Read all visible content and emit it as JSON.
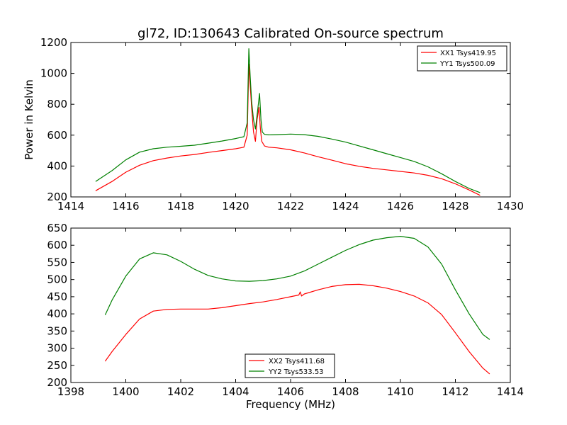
{
  "chart_data": [
    {
      "type": "line",
      "title": "gl72, ID:130643 Calibrated On-source spectrum",
      "xlabel": "",
      "ylabel": "Power in Kelvin",
      "xlim": [
        1414,
        1430
      ],
      "ylim": [
        200,
        1200
      ],
      "xticks": [
        1414,
        1416,
        1418,
        1420,
        1422,
        1424,
        1426,
        1428,
        1430
      ],
      "yticks": [
        200,
        400,
        600,
        800,
        1000,
        1200
      ],
      "legend_position": "top-right",
      "series": [
        {
          "name": "XX1 Tsys419.95",
          "color": "#ff0000",
          "x": [
            1414.9,
            1415.5,
            1416.0,
            1416.5,
            1417.0,
            1417.5,
            1418.0,
            1418.5,
            1419.0,
            1419.5,
            1420.0,
            1420.3,
            1420.42,
            1420.48,
            1420.52,
            1420.58,
            1420.65,
            1420.72,
            1420.78,
            1420.85,
            1420.9,
            1420.95,
            1421.05,
            1421.2,
            1421.5,
            1422.0,
            1422.5,
            1423.0,
            1423.5,
            1424.0,
            1424.5,
            1425.0,
            1425.5,
            1426.0,
            1426.5,
            1427.0,
            1427.5,
            1428.0,
            1428.5,
            1428.9
          ],
          "values": [
            240,
            300,
            360,
            405,
            435,
            452,
            465,
            475,
            488,
            500,
            512,
            522,
            600,
            1060,
            950,
            780,
            620,
            560,
            700,
            780,
            640,
            560,
            530,
            522,
            518,
            505,
            485,
            460,
            438,
            415,
            398,
            385,
            375,
            365,
            355,
            340,
            318,
            285,
            245,
            210
          ]
        },
        {
          "name": "YY1 Tsys500.09",
          "color": "#008000",
          "x": [
            1414.9,
            1415.5,
            1416.0,
            1416.5,
            1417.0,
            1417.5,
            1418.0,
            1418.5,
            1419.0,
            1419.5,
            1420.0,
            1420.3,
            1420.42,
            1420.48,
            1420.53,
            1420.58,
            1420.65,
            1420.72,
            1420.8,
            1420.87,
            1420.92,
            1420.97,
            1421.05,
            1421.2,
            1421.5,
            1422.0,
            1422.5,
            1423.0,
            1423.5,
            1424.0,
            1424.5,
            1425.0,
            1425.5,
            1426.0,
            1426.5,
            1427.0,
            1427.5,
            1428.0,
            1428.5,
            1428.9
          ],
          "values": [
            300,
            370,
            440,
            490,
            512,
            522,
            528,
            535,
            548,
            562,
            578,
            590,
            680,
            1160,
            980,
            820,
            700,
            640,
            760,
            870,
            700,
            620,
            605,
            602,
            603,
            607,
            603,
            592,
            575,
            555,
            530,
            505,
            480,
            455,
            430,
            395,
            350,
            300,
            255,
            228
          ]
        }
      ]
    },
    {
      "type": "line",
      "title": "",
      "xlabel": "Frequency (MHz)",
      "ylabel": "",
      "xlim": [
        1398,
        1414
      ],
      "ylim": [
        200,
        650
      ],
      "xticks": [
        1398,
        1400,
        1402,
        1404,
        1406,
        1408,
        1410,
        1412,
        1414
      ],
      "yticks": [
        200,
        250,
        300,
        350,
        400,
        450,
        500,
        550,
        600,
        650
      ],
      "legend_position": "bottom-center",
      "series": [
        {
          "name": "XX2 Tsys411.68",
          "color": "#ff0000",
          "x": [
            1399.25,
            1399.5,
            1400.0,
            1400.5,
            1401.0,
            1401.5,
            1402.0,
            1402.5,
            1403.0,
            1403.5,
            1404.0,
            1404.5,
            1405.0,
            1405.5,
            1406.0,
            1406.3,
            1406.35,
            1406.4,
            1406.5,
            1407.0,
            1407.5,
            1408.0,
            1408.5,
            1409.0,
            1409.5,
            1410.0,
            1410.5,
            1411.0,
            1411.5,
            1412.0,
            1412.5,
            1413.0,
            1413.25
          ],
          "values": [
            262,
            290,
            340,
            385,
            408,
            413,
            414,
            414,
            414,
            418,
            424,
            430,
            435,
            442,
            450,
            455,
            464,
            452,
            458,
            470,
            480,
            485,
            486,
            482,
            475,
            465,
            452,
            432,
            398,
            345,
            290,
            242,
            225
          ]
        },
        {
          "name": "YY2 Tsys533.53",
          "color": "#008000",
          "x": [
            1399.25,
            1399.5,
            1400.0,
            1400.5,
            1401.0,
            1401.5,
            1402.0,
            1402.5,
            1403.0,
            1403.5,
            1404.0,
            1404.5,
            1405.0,
            1405.5,
            1406.0,
            1406.5,
            1407.0,
            1407.5,
            1408.0,
            1408.5,
            1409.0,
            1409.5,
            1410.0,
            1410.5,
            1411.0,
            1411.5,
            1412.0,
            1412.5,
            1413.0,
            1413.25
          ],
          "values": [
            397,
            440,
            510,
            560,
            578,
            572,
            553,
            530,
            512,
            502,
            496,
            495,
            497,
            502,
            510,
            525,
            545,
            565,
            585,
            602,
            615,
            622,
            626,
            620,
            595,
            545,
            470,
            400,
            340,
            325
          ]
        }
      ]
    }
  ]
}
